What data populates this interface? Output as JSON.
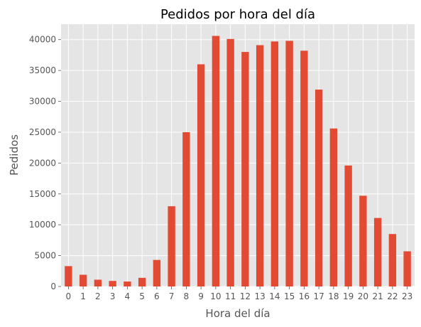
{
  "chart_data": {
    "type": "bar",
    "title": "Pedidos por hora del día",
    "xlabel": "Hora del día",
    "ylabel": "Pedidos",
    "categories": [
      "0",
      "1",
      "2",
      "3",
      "4",
      "5",
      "6",
      "7",
      "8",
      "9",
      "10",
      "11",
      "12",
      "13",
      "14",
      "15",
      "16",
      "17",
      "18",
      "19",
      "20",
      "21",
      "22",
      "23"
    ],
    "values": [
      3300,
      1900,
      1100,
      900,
      800,
      1400,
      4300,
      13000,
      25000,
      36000,
      40600,
      40100,
      38000,
      39100,
      39700,
      39800,
      38200,
      31900,
      25600,
      19600,
      14700,
      11100,
      8500,
      5700
    ],
    "ylim": [
      0,
      42500
    ],
    "yticks": [
      0,
      5000,
      10000,
      15000,
      20000,
      25000,
      30000,
      35000,
      40000
    ],
    "ytick_labels": [
      "0",
      "5000",
      "10000",
      "15000",
      "20000",
      "25000",
      "30000",
      "35000",
      "40000"
    ],
    "grid": true,
    "bar_color": "#E24A33",
    "background_color": "#E5E5E5",
    "grid_color": "#FFFFFF"
  }
}
